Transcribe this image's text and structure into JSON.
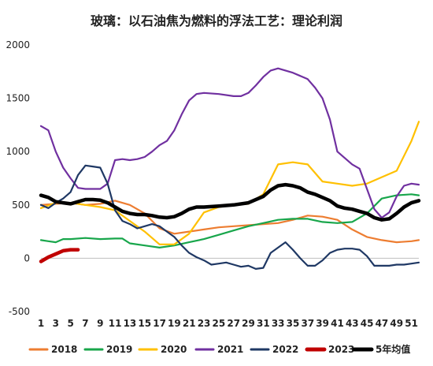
{
  "chart_data": {
    "type": "line",
    "title": "玻璃：以石油焦为燃料的浮法工艺：理论利润",
    "xlabel": "",
    "ylabel": "",
    "ylim": [
      -500,
      2000
    ],
    "yticks": [
      "2000",
      "1500",
      "1000",
      "500",
      "0",
      "-500"
    ],
    "ytick_values": [
      2000,
      1500,
      1000,
      500,
      0,
      -500
    ],
    "xlim": [
      1,
      52
    ],
    "xticks": [
      "1",
      "3",
      "5",
      "7",
      "9",
      "11",
      "13",
      "15",
      "17",
      "19",
      "21",
      "23",
      "25",
      "27",
      "29",
      "31",
      "33",
      "35",
      "37",
      "39",
      "41",
      "43",
      "45",
      "47",
      "49",
      "51"
    ],
    "grid": false,
    "legend_position": "bottom",
    "series": [
      {
        "name": "2018",
        "color": "#ED7D31",
        "width": 2.2,
        "x": [
          1,
          3,
          5,
          7,
          9,
          11,
          13,
          15,
          17,
          19,
          21,
          23,
          25,
          27,
          29,
          31,
          33,
          35,
          37,
          39,
          41,
          43,
          45,
          47,
          49,
          51,
          52
        ],
        "y": [
          500,
          510,
          520,
          500,
          510,
          540,
          500,
          420,
          280,
          230,
          250,
          270,
          290,
          300,
          310,
          320,
          330,
          360,
          400,
          390,
          360,
          270,
          200,
          170,
          150,
          160,
          170
        ]
      },
      {
        "name": "2019",
        "color": "#18A64B",
        "width": 2.2,
        "x": [
          1,
          2,
          3,
          4,
          5,
          7,
          9,
          11,
          12,
          13,
          15,
          17,
          19,
          21,
          23,
          25,
          27,
          29,
          31,
          33,
          35,
          37,
          39,
          41,
          43,
          45,
          47,
          49,
          51,
          52
        ],
        "y": [
          170,
          160,
          150,
          180,
          180,
          190,
          180,
          185,
          185,
          140,
          120,
          100,
          120,
          150,
          180,
          220,
          260,
          300,
          330,
          360,
          370,
          370,
          340,
          330,
          340,
          420,
          560,
          590,
          600,
          590
        ]
      },
      {
        "name": "2020",
        "color": "#FFC000",
        "width": 2.2,
        "x": [
          1,
          3,
          5,
          7,
          9,
          11,
          13,
          15,
          17,
          19,
          21,
          23,
          25,
          27,
          29,
          31,
          33,
          35,
          37,
          39,
          41,
          43,
          45,
          47,
          49,
          51,
          52
        ],
        "y": [
          470,
          520,
          520,
          500,
          480,
          450,
          350,
          250,
          130,
          130,
          230,
          430,
          480,
          500,
          510,
          600,
          880,
          900,
          880,
          720,
          700,
          680,
          700,
          760,
          820,
          1100,
          1280
        ]
      },
      {
        "name": "2021",
        "color": "#7030A0",
        "width": 2.2,
        "x": [
          1,
          2,
          3,
          4,
          5,
          6,
          7,
          8,
          9,
          10,
          11,
          12,
          13,
          14,
          15,
          16,
          17,
          18,
          19,
          20,
          21,
          22,
          23,
          25,
          27,
          28,
          29,
          30,
          31,
          32,
          33,
          34,
          35,
          37,
          38,
          39,
          40,
          41,
          43,
          44,
          45,
          46,
          47,
          48,
          49,
          50,
          51,
          52
        ],
        "y": [
          1240,
          1200,
          1000,
          850,
          750,
          660,
          650,
          650,
          650,
          700,
          920,
          930,
          920,
          930,
          950,
          1000,
          1060,
          1100,
          1200,
          1350,
          1480,
          1540,
          1550,
          1540,
          1520,
          1520,
          1550,
          1620,
          1700,
          1760,
          1780,
          1760,
          1740,
          1680,
          1600,
          1500,
          1300,
          1000,
          880,
          840,
          650,
          460,
          380,
          430,
          580,
          680,
          700,
          690
        ]
      },
      {
        "name": "2022",
        "color": "#1F3864",
        "width": 2.2,
        "x": [
          1,
          2,
          3,
          4,
          5,
          6,
          7,
          8,
          9,
          10,
          11,
          12,
          13,
          14,
          15,
          16,
          17,
          18,
          19,
          20,
          21,
          22,
          23,
          24,
          25,
          26,
          27,
          28,
          29,
          30,
          31,
          32,
          33,
          34,
          35,
          36,
          37,
          38,
          39,
          40,
          41,
          42,
          43,
          44,
          45,
          46,
          47,
          48,
          49,
          50,
          51,
          52
        ],
        "y": [
          500,
          470,
          520,
          560,
          620,
          780,
          870,
          860,
          850,
          700,
          450,
          350,
          320,
          280,
          300,
          320,
          300,
          250,
          200,
          120,
          50,
          10,
          -20,
          -60,
          -50,
          -40,
          -60,
          -80,
          -70,
          -100,
          -90,
          50,
          100,
          150,
          80,
          0,
          -70,
          -70,
          -20,
          50,
          80,
          90,
          90,
          80,
          20,
          -70,
          -70,
          -70,
          -60,
          -60,
          -50,
          -40
        ]
      },
      {
        "name": "2023",
        "color": "#C00000",
        "width": 4.5,
        "x": [
          1,
          2,
          3,
          4,
          5,
          6
        ],
        "y": [
          -30,
          10,
          40,
          70,
          80,
          80
        ]
      },
      {
        "name": "5年均值",
        "color": "#000000",
        "width": 4.5,
        "x": [
          1,
          2,
          3,
          4,
          5,
          6,
          7,
          8,
          9,
          10,
          11,
          12,
          13,
          14,
          15,
          16,
          17,
          18,
          19,
          20,
          21,
          22,
          23,
          25,
          27,
          29,
          31,
          32,
          33,
          34,
          35,
          36,
          37,
          38,
          39,
          40,
          41,
          42,
          43,
          44,
          45,
          46,
          47,
          48,
          49,
          50,
          51,
          52
        ],
        "y": [
          590,
          570,
          530,
          520,
          510,
          530,
          550,
          550,
          545,
          520,
          480,
          440,
          420,
          410,
          410,
          400,
          385,
          380,
          390,
          420,
          460,
          480,
          480,
          490,
          500,
          520,
          580,
          640,
          680,
          690,
          680,
          660,
          620,
          600,
          570,
          540,
          490,
          470,
          460,
          440,
          420,
          380,
          360,
          370,
          420,
          480,
          520,
          540
        ]
      }
    ]
  }
}
